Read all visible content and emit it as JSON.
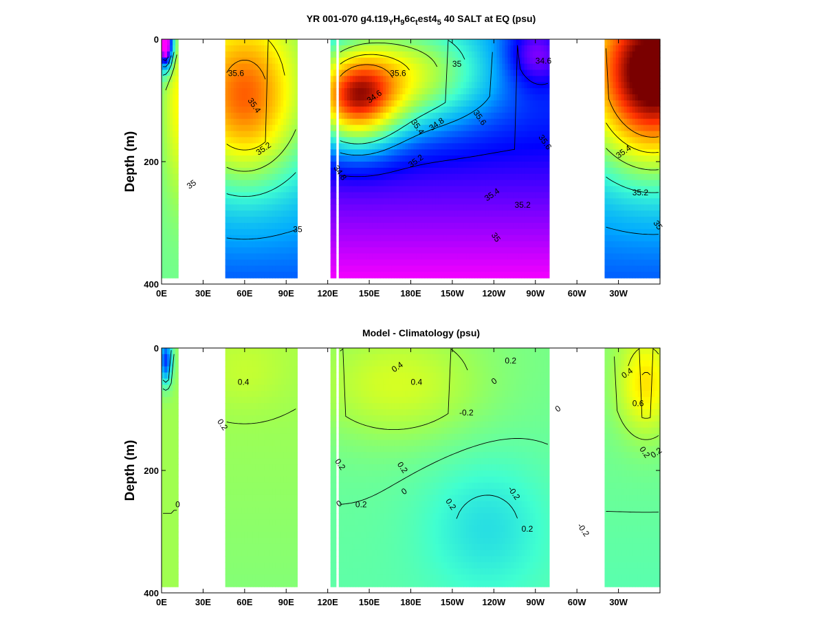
{
  "chart_data": [
    {
      "type": "heatmap",
      "title": "YR 001-070 g4.t19_YH_9 6c_t est4_5 40 SALT at EQ (psu)",
      "title_parts": {
        "a": "YR 001-070 g4.t19",
        "sub1": "Y",
        "b": "H",
        "sub2": "9",
        "c": "6c",
        "sub3": "t",
        "d": "est4",
        "sub4": "5",
        "e": "40 SALT at EQ (psu)"
      },
      "ylabel": "Depth (m)",
      "xticks": [
        "0E",
        "30E",
        "60E",
        "90E",
        "120E",
        "150E",
        "180E",
        "150W",
        "120W",
        "90W",
        "60W",
        "30W"
      ],
      "yticks": [
        "0",
        "200",
        "400"
      ],
      "xlim_deg_east": [
        0,
        360
      ],
      "ylim_m": [
        0,
        400
      ],
      "grid": false,
      "data_segments_deg_east": [
        [
          0,
          12
        ],
        [
          46,
          98
        ],
        [
          122,
          125
        ],
        [
          128,
          280
        ],
        [
          320,
          360
        ]
      ],
      "colormap": [
        "#ff00ff",
        "#0000ff",
        "#00aaff",
        "#40ffd0",
        "#a0ff50",
        "#ffff00",
        "#ffa000",
        "#ff3000",
        "#7a0000"
      ],
      "cmap_range": [
        34.4,
        36.0
      ],
      "field_features": [
        {
          "lon": 140,
          "depth": 90,
          "value": 35.7
        },
        {
          "lon": 155,
          "depth": 140,
          "value": 35.6
        },
        {
          "lon": 60,
          "depth": 100,
          "value": 35.7
        },
        {
          "lon": 345,
          "depth": 80,
          "value": 36.1
        },
        {
          "lon": 250,
          "depth": 320,
          "value": 34.55
        }
      ],
      "contour_labels": [
        "35.6",
        "35.4",
        "35.2",
        "35",
        "34.8",
        "34.6",
        "35.6",
        "35.4",
        "35.2",
        "35",
        "35.6",
        "35.4",
        "35.2",
        "35",
        "34.8",
        "34.6",
        "35.6",
        "35.4",
        "35.2",
        "35",
        "35"
      ]
    },
    {
      "type": "heatmap",
      "title": "Model - Climatology (psu)",
      "ylabel": "Depth (m)",
      "xticks": [
        "0E",
        "30E",
        "60E",
        "90E",
        "120E",
        "150E",
        "180E",
        "150W",
        "120W",
        "90W",
        "60W",
        "30W"
      ],
      "yticks": [
        "0",
        "200",
        "400"
      ],
      "xlim_deg_east": [
        0,
        360
      ],
      "ylim_m": [
        0,
        400
      ],
      "grid": false,
      "data_segments_deg_east": [
        [
          0,
          12
        ],
        [
          46,
          98
        ],
        [
          122,
          125
        ],
        [
          128,
          280
        ],
        [
          320,
          360
        ]
      ],
      "colormap": [
        "#0000ff",
        "#00aaff",
        "#40ffd0",
        "#a0ff50",
        "#ffff00",
        "#ffa000",
        "#ff3000"
      ],
      "cmap_range": [
        -0.8,
        1.2
      ],
      "field_features": [
        {
          "lon": 170,
          "depth": 60,
          "value": 0.45
        },
        {
          "lon": 345,
          "depth": 60,
          "value": 0.7
        },
        {
          "lon": 235,
          "depth": 280,
          "value": -0.3
        },
        {
          "lon": 3,
          "depth": 20,
          "value": -0.8
        }
      ],
      "contour_labels": [
        "0.4",
        "0.2",
        "0.4",
        "0.4",
        "0.2",
        "0",
        "-0.2",
        "0.2",
        "0",
        "0.2",
        "0.2",
        "0",
        "0.2",
        "-0.2",
        "0",
        "0.2",
        "-0.2",
        "0.4",
        "0.6",
        "0.2",
        "0.2",
        "0"
      ]
    }
  ]
}
